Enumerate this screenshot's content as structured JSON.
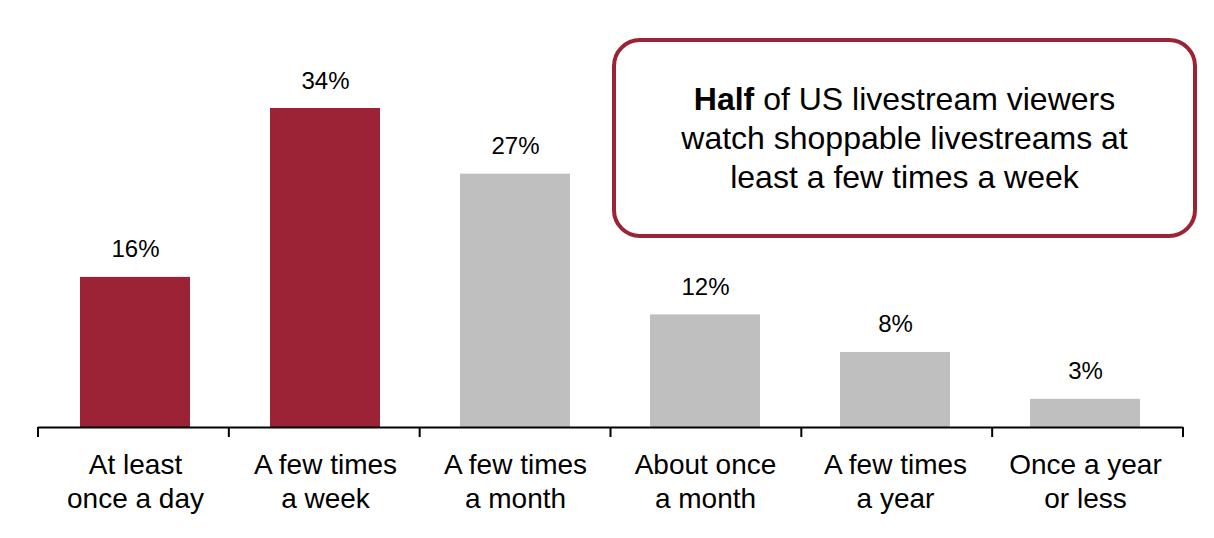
{
  "chart_data": {
    "type": "bar",
    "categories": [
      "At least once a day",
      "A few times a week",
      "A few times a month",
      "About once a month",
      "A few times a year",
      "Once a year or less"
    ],
    "values": [
      16,
      34,
      27,
      12,
      8,
      3
    ],
    "value_labels": [
      "16%",
      "34%",
      "27%",
      "12%",
      "8%",
      "3%"
    ],
    "colors": [
      "#9b2335",
      "#9b2335",
      "#bfbfbf",
      "#bfbfbf",
      "#bfbfbf",
      "#bfbfbf"
    ],
    "ylim": [
      0,
      34
    ],
    "data_labels": true,
    "tick_labels": "x",
    "annotation": "Half of US livestream viewers watch shoppable livestreams at least a few times a week"
  }
}
